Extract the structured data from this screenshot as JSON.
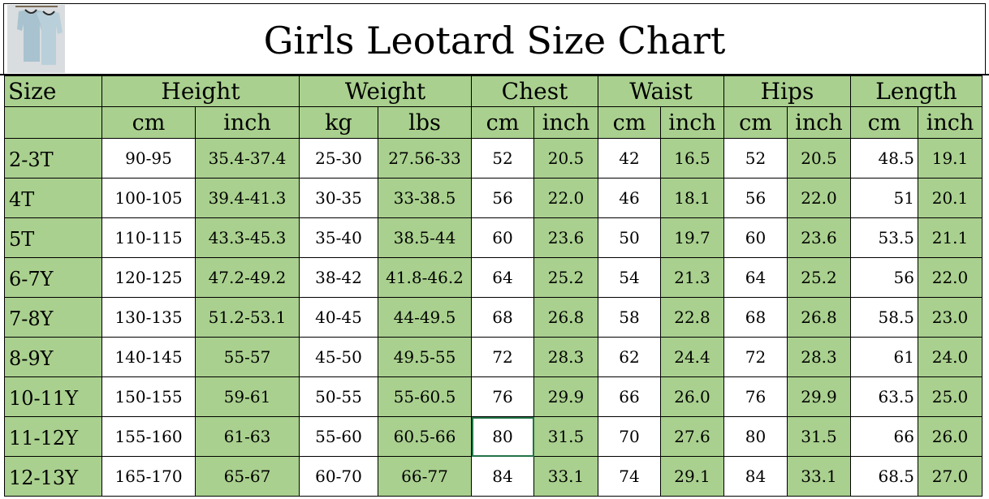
{
  "title": "Girls Leotard Size Chart",
  "header_groups": {
    "size": "Size",
    "height": "Height",
    "weight": "Weight",
    "chest": "Chest",
    "waist": "Waist",
    "hips": "Hips",
    "length": "Length"
  },
  "units": {
    "height_cm": "cm",
    "height_inch": "inch",
    "weight_kg": "kg",
    "weight_lbs": "lbs",
    "chest_cm": "cm",
    "chest_inch": "inch",
    "waist_cm": "cm",
    "waist_inch": "inch",
    "hips_cm": "cm",
    "hips_inch": "inch",
    "length_cm": "cm",
    "length_inch": "inch"
  },
  "rows": [
    [
      "2-3T",
      "90-95",
      "35.4-37.4",
      "25-30",
      "27.56-33",
      "52",
      "20.5",
      "42",
      "16.5",
      "52",
      "20.5",
      "48.5",
      "19.1"
    ],
    [
      "4T",
      "100-105",
      "39.4-41.3",
      "30-35",
      "33-38.5",
      "56",
      "22.0",
      "46",
      "18.1",
      "56",
      "22.0",
      "51",
      "20.1"
    ],
    [
      "5T",
      "110-115",
      "43.3-45.3",
      "35-40",
      "38.5-44",
      "60",
      "23.6",
      "50",
      "19.7",
      "60",
      "23.6",
      "53.5",
      "21.1"
    ],
    [
      "6-7Y",
      "120-125",
      "47.2-49.2",
      "38-42",
      "41.8-46.2",
      "64",
      "25.2",
      "54",
      "21.3",
      "64",
      "25.2",
      "56",
      "22.0"
    ],
    [
      "7-8Y",
      "130-135",
      "51.2-53.1",
      "40-45",
      "44-49.5",
      "68",
      "26.8",
      "58",
      "22.8",
      "68",
      "26.8",
      "58.5",
      "23.0"
    ],
    [
      "8-9Y",
      "140-145",
      "55-57",
      "45-50",
      "49.5-55",
      "72",
      "28.3",
      "62",
      "24.4",
      "72",
      "28.3",
      "61",
      "24.0"
    ],
    [
      "10-11Y",
      "150-155",
      "59-61",
      "50-55",
      "55-60.5",
      "76",
      "29.9",
      "66",
      "26.0",
      "76",
      "29.9",
      "63.5",
      "25.0"
    ],
    [
      "11-12Y",
      "155-160",
      "61-63",
      "55-60",
      "60.5-66",
      "80",
      "31.5",
      "70",
      "27.6",
      "80",
      "31.5",
      "66",
      "26.0"
    ],
    [
      "12-13Y",
      "165-170",
      "65-67",
      "60-70",
      "66-77",
      "84",
      "33.1",
      "74",
      "29.1",
      "84",
      "33.1",
      "68.5",
      "27.0"
    ]
  ],
  "colors": {
    "header_green": "#a9d08e",
    "selection_border": "#217346"
  }
}
